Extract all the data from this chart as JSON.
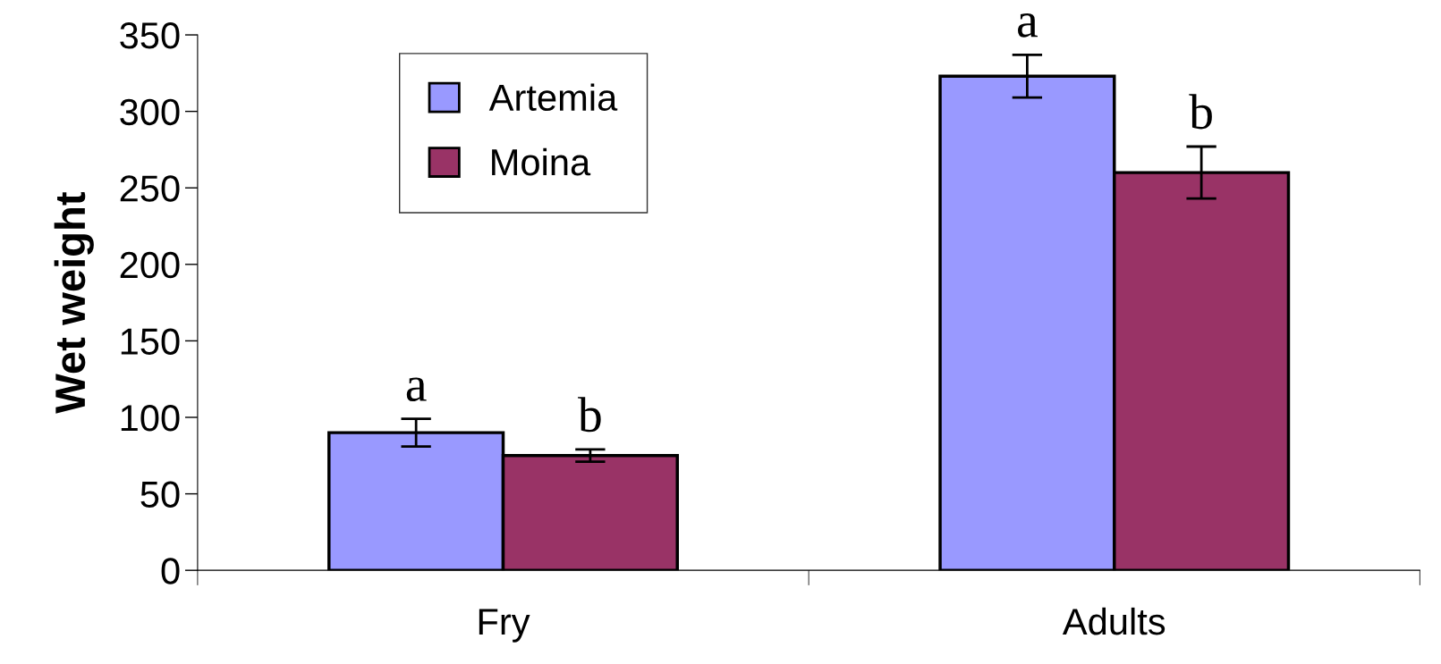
{
  "chart_data": {
    "type": "bar",
    "ylabel": "Wet weight",
    "categories": [
      "Fry",
      "Adults"
    ],
    "series": [
      {
        "name": "Artemia",
        "color": "#9999ff",
        "values": [
          90,
          323
        ],
        "errors": [
          9,
          14
        ]
      },
      {
        "name": "Moina",
        "color": "#993366",
        "values": [
          75,
          260
        ],
        "errors": [
          4,
          17
        ]
      }
    ],
    "ylim": [
      0,
      350
    ],
    "yticks": [
      0,
      50,
      100,
      150,
      200,
      250,
      300,
      350
    ],
    "grid": false,
    "legend": "top left",
    "annotations": [
      "a",
      "b",
      "a",
      "b"
    ]
  }
}
